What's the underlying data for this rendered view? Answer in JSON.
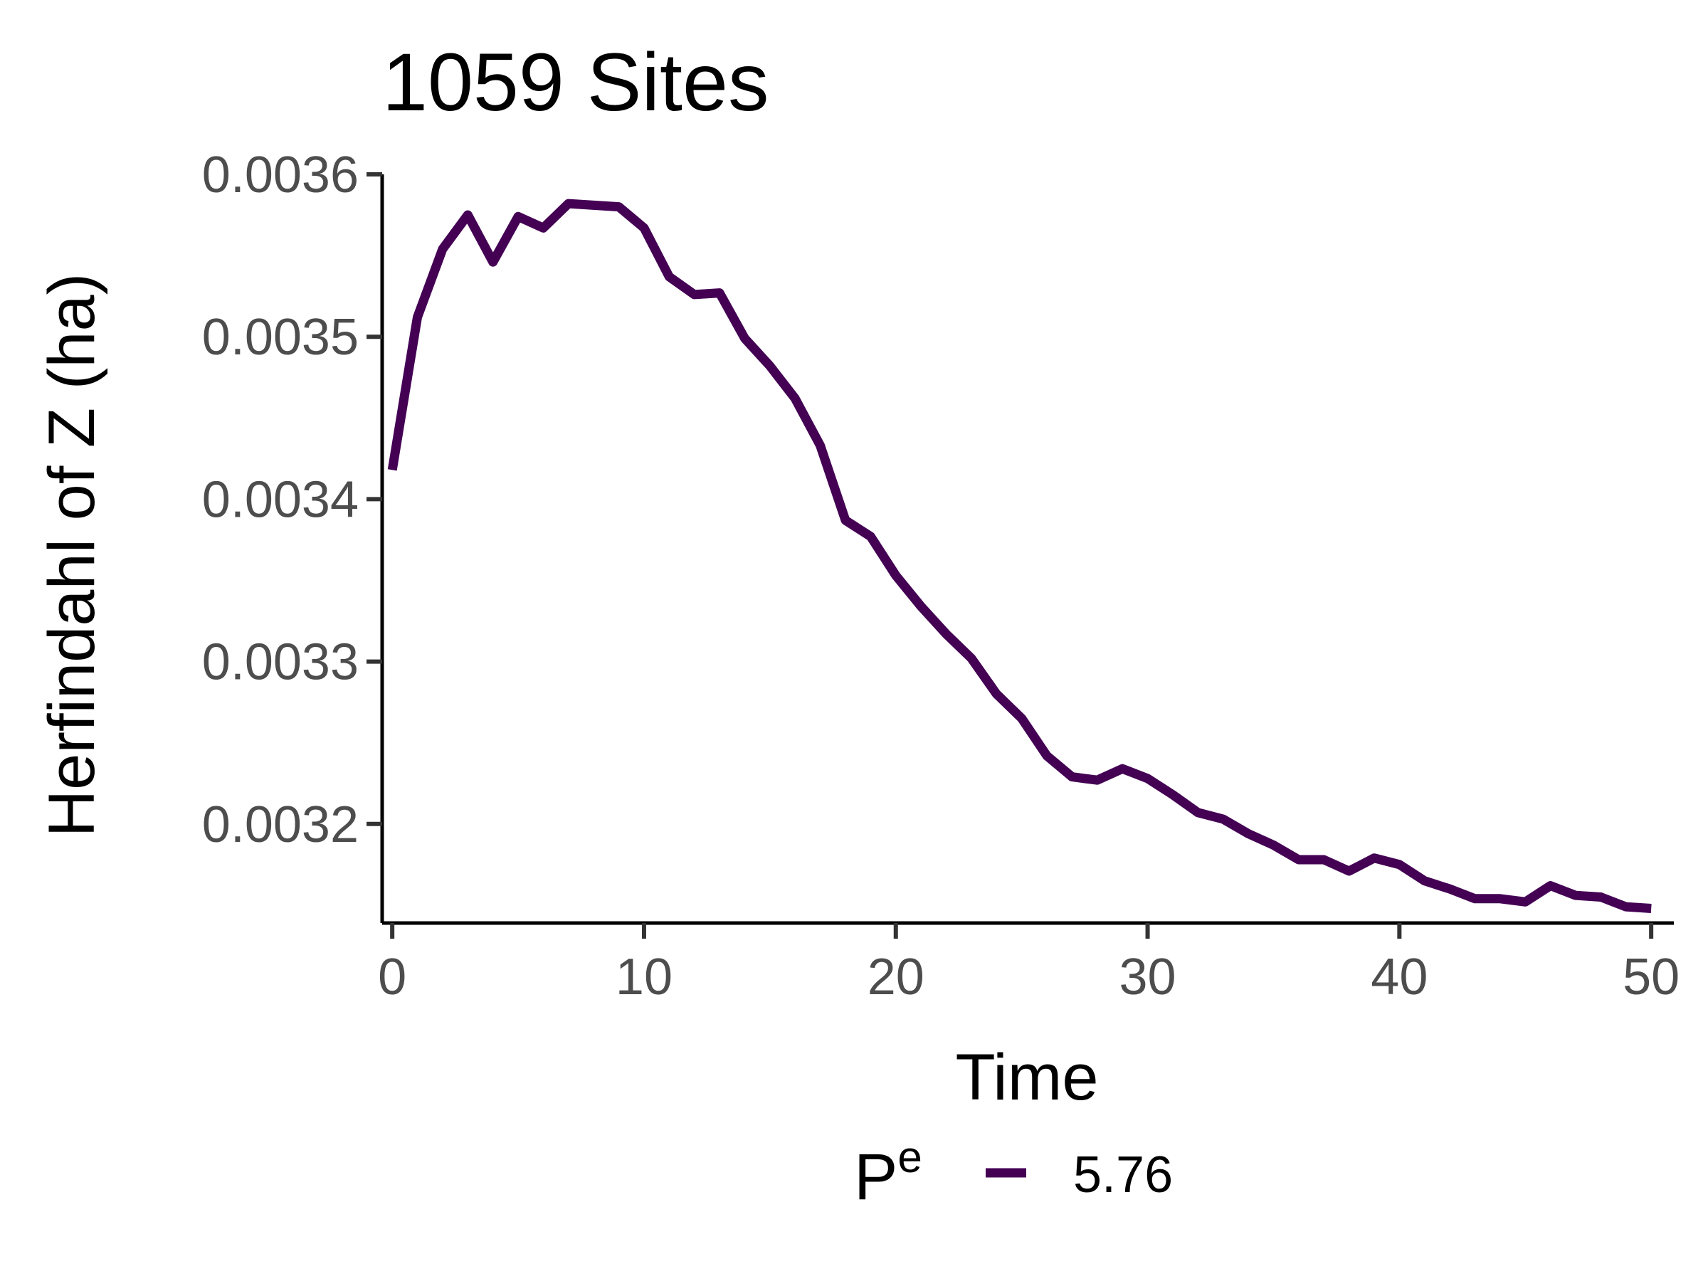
{
  "chart_data": {
    "type": "line",
    "title": "1059 Sites",
    "xlabel": "Time",
    "ylabel": "Herfindahl of Z (ha)",
    "xlim": [
      -0.4,
      50.9
    ],
    "ylim": [
      0.003139,
      0.0036
    ],
    "xticks": [
      0,
      10,
      20,
      30,
      40,
      50
    ],
    "xtick_labels": [
      "0",
      "10",
      "20",
      "30",
      "40",
      "50"
    ],
    "yticks": [
      0.0032,
      0.0033,
      0.0034,
      0.0035,
      0.0036
    ],
    "ytick_labels": [
      "0.0032",
      "0.0033",
      "0.0034",
      "0.0035",
      "0.0036"
    ],
    "grid": false,
    "legend": {
      "position": "bottom",
      "title": "P",
      "title_superscript": "e",
      "entries": [
        "5.76"
      ]
    },
    "series": [
      {
        "name": "5.76",
        "color": "#440154",
        "x": [
          0,
          1,
          2,
          3,
          4,
          5,
          6,
          7,
          8,
          9,
          10,
          11,
          12,
          13,
          14,
          15,
          16,
          17,
          18,
          19,
          20,
          21,
          22,
          23,
          24,
          25,
          26,
          27,
          28,
          29,
          30,
          31,
          32,
          33,
          34,
          35,
          36,
          37,
          38,
          39,
          40,
          41,
          42,
          43,
          44,
          45,
          46,
          47,
          48,
          49,
          50
        ],
        "values": [
          0.003418,
          0.003512,
          0.003554,
          0.003575,
          0.003546,
          0.003574,
          0.003567,
          0.003582,
          0.003581,
          0.00358,
          0.003567,
          0.003537,
          0.003526,
          0.003527,
          0.003499,
          0.003482,
          0.003462,
          0.003433,
          0.003387,
          0.003377,
          0.003353,
          0.003334,
          0.003317,
          0.003302,
          0.00328,
          0.003265,
          0.003242,
          0.003229,
          0.003227,
          0.003234,
          0.003228,
          0.003218,
          0.003207,
          0.003203,
          0.003194,
          0.003187,
          0.003178,
          0.003178,
          0.003171,
          0.003179,
          0.003175,
          0.003165,
          0.00316,
          0.003154,
          0.003154,
          0.003152,
          0.003162,
          0.003156,
          0.003155,
          0.003149,
          0.003148
        ]
      }
    ]
  }
}
